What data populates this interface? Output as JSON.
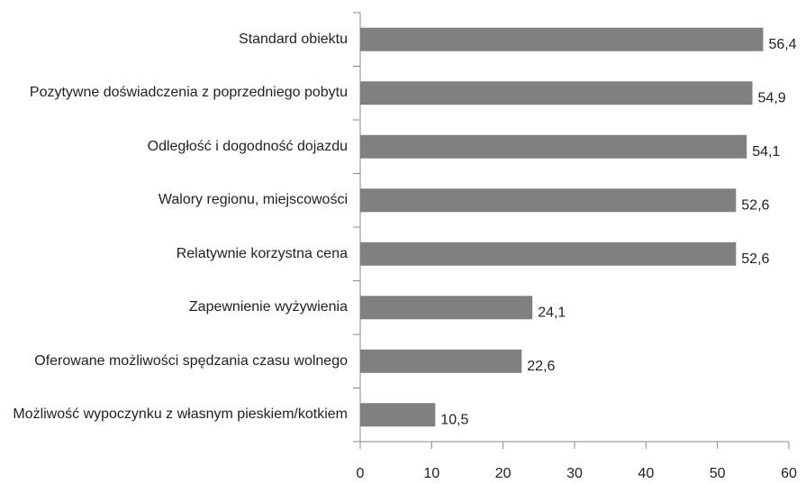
{
  "chart_data": {
    "type": "bar",
    "orientation": "horizontal",
    "categories": [
      "Standard obiektu",
      "Pozytywne doświadczenia z poprzedniego pobytu",
      "Odległość i dogodność dojazdu",
      "Walory regionu, miejscowości",
      "Relatywnie korzystna cena",
      "Zapewnienie wyżywienia",
      "Oferowane możliwości spędzania czasu wolnego",
      "Możliwość wypoczynku z własnym pieskiem/kotkiem"
    ],
    "values": [
      56.4,
      54.9,
      54.1,
      52.6,
      52.6,
      24.1,
      22.6,
      10.5
    ],
    "value_labels": [
      "56,4",
      "54,9",
      "54,1",
      "52,6",
      "52,6",
      "24,1",
      "22,6",
      "10,5"
    ],
    "color": "#808080",
    "xlim": [
      0,
      60
    ],
    "xticks": [
      0,
      10,
      20,
      30,
      40,
      50,
      60
    ],
    "grid": false
  }
}
